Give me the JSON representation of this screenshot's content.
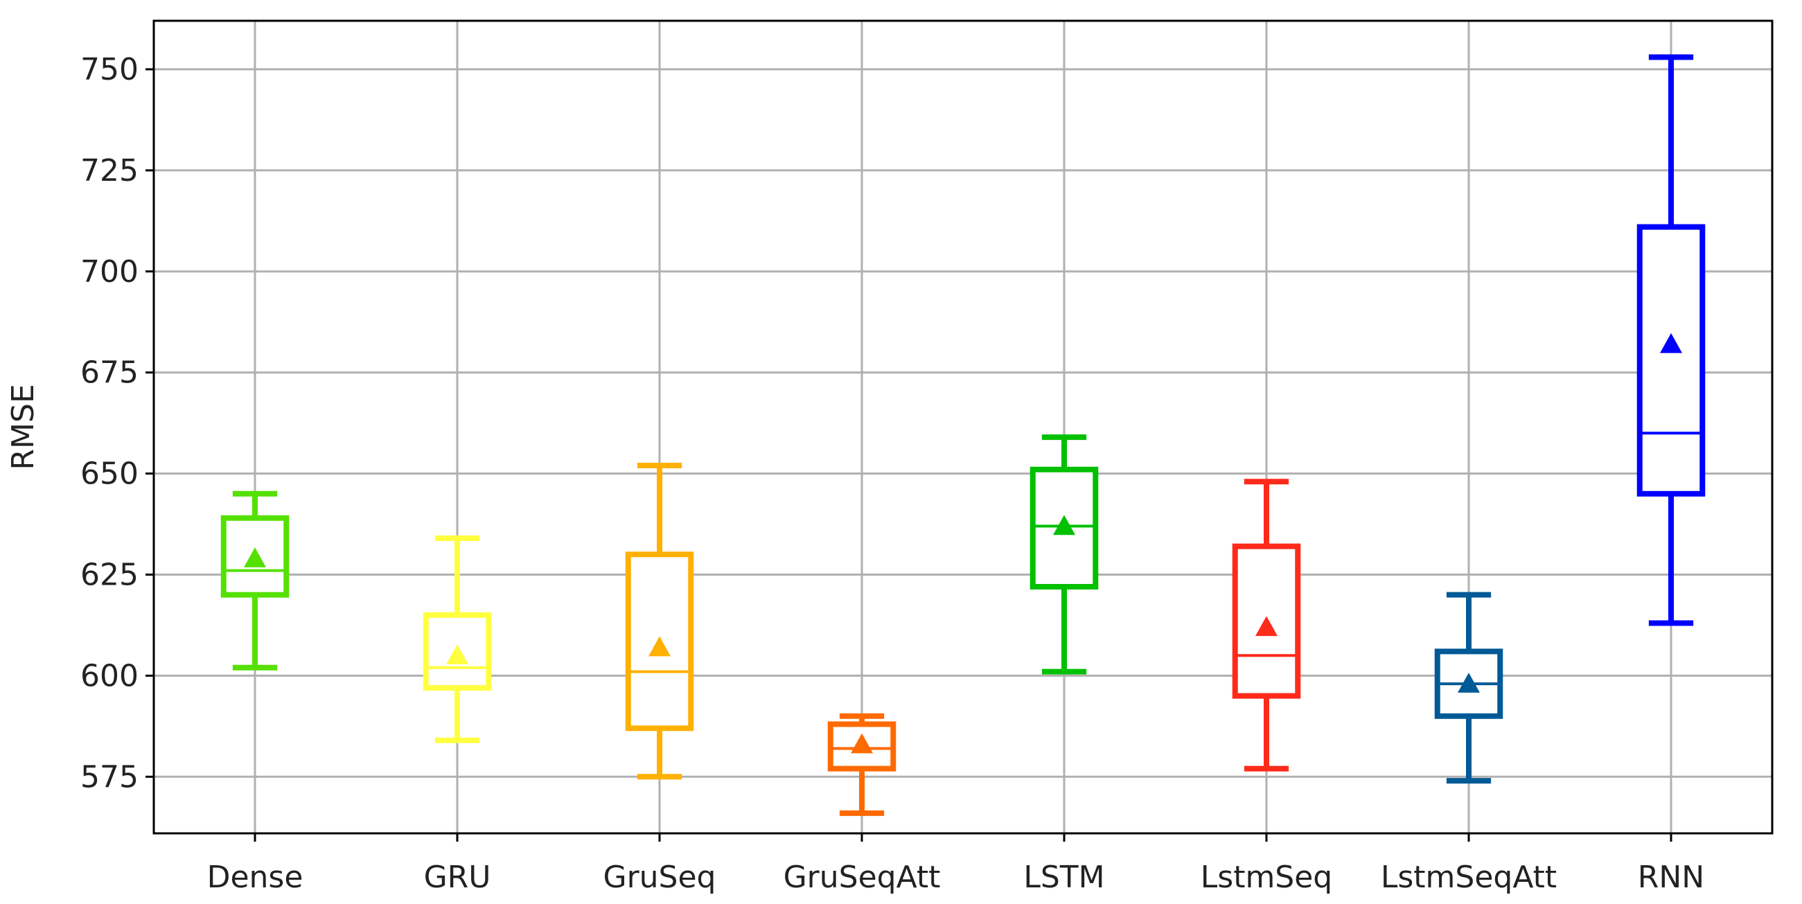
{
  "chart_data": {
    "type": "box",
    "title": "",
    "xlabel": "",
    "ylabel": "RMSE",
    "ylim": [
      561,
      762
    ],
    "yticks": [
      575,
      600,
      625,
      650,
      675,
      700,
      725,
      750
    ],
    "grid": true,
    "legend": "none",
    "categories": [
      "Dense",
      "GRU",
      "GruSeq",
      "GruSeqAtt",
      "LSTM",
      "LstmSeq",
      "LstmSeqAtt",
      "RNN"
    ],
    "boxes": [
      {
        "category": "Dense",
        "color": "#55e000",
        "whisker_low": 602,
        "q1": 620,
        "median": 626,
        "q3": 639,
        "whisker_high": 645,
        "mean": 629
      },
      {
        "category": "GRU",
        "color": "#ffff40",
        "whisker_low": 584,
        "q1": 597,
        "median": 602,
        "q3": 615,
        "whisker_high": 634,
        "mean": 605
      },
      {
        "category": "GruSeq",
        "color": "#ffb000",
        "whisker_low": 575,
        "q1": 587,
        "median": 601,
        "q3": 630,
        "whisker_high": 652,
        "mean": 607
      },
      {
        "category": "GruSeqAtt",
        "color": "#ff6a00",
        "whisker_low": 566,
        "q1": 577,
        "median": 582,
        "q3": 588,
        "whisker_high": 590,
        "mean": 583
      },
      {
        "category": "LSTM",
        "color": "#00c000",
        "whisker_low": 601,
        "q1": 622,
        "median": 637,
        "q3": 651,
        "whisker_high": 659,
        "mean": 637
      },
      {
        "category": "LstmSeq",
        "color": "#ff2a1a",
        "whisker_low": 577,
        "q1": 595,
        "median": 605,
        "q3": 632,
        "whisker_high": 648,
        "mean": 612
      },
      {
        "category": "LstmSeqAtt",
        "color": "#005a96",
        "whisker_low": 574,
        "q1": 590,
        "median": 598,
        "q3": 606,
        "whisker_high": 620,
        "mean": 598
      },
      {
        "category": "RNN",
        "color": "#0000ff",
        "whisker_low": 613,
        "q1": 645,
        "median": 660,
        "q3": 711,
        "whisker_high": 753,
        "mean": 682
      }
    ]
  }
}
